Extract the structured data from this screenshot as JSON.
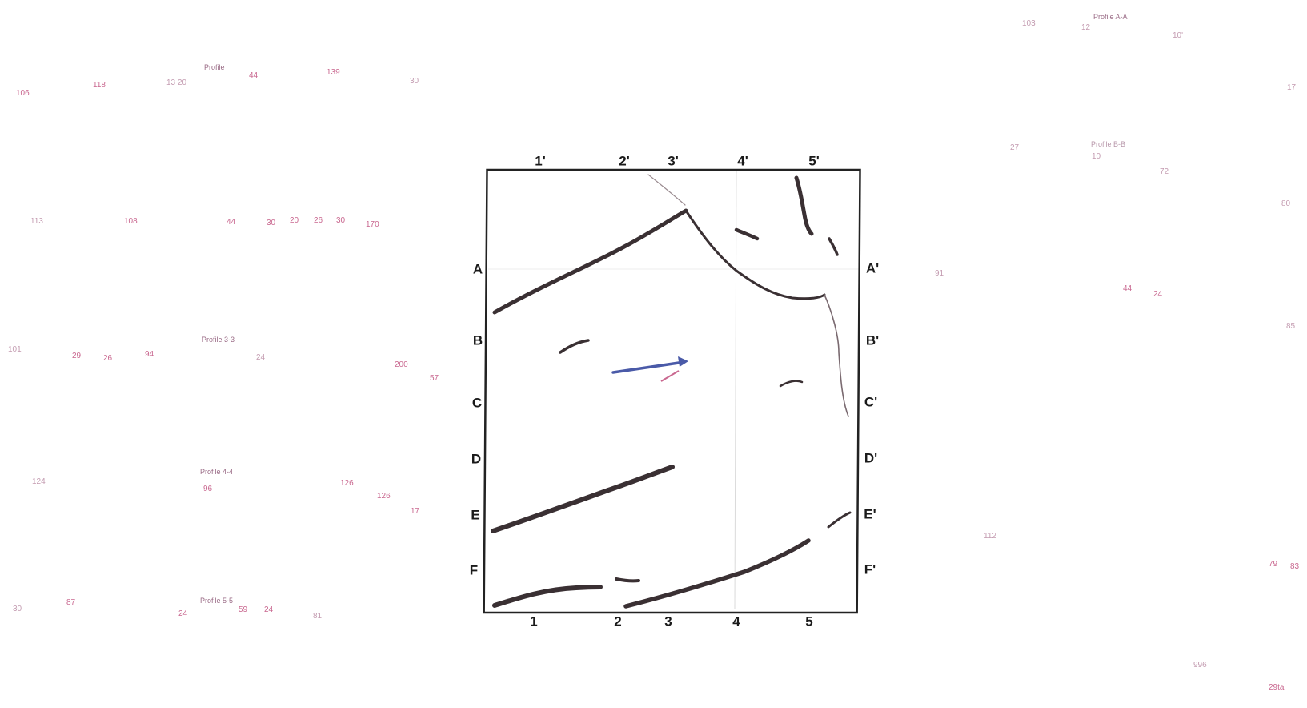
{
  "map": {
    "top_columns": [
      "1'",
      "2'",
      "3'",
      "4'",
      "5'"
    ],
    "bottom_columns": [
      "1",
      "2",
      "3",
      "4",
      "5"
    ],
    "left_rows": [
      "A",
      "B",
      "C",
      "D",
      "E",
      "F"
    ],
    "right_rows": [
      "A'",
      "B'",
      "C'",
      "D'",
      "E'",
      "F'"
    ]
  },
  "left_panel": {
    "profile_labels": [
      "Profile",
      "Profile 3-3",
      "Profile 4-4",
      "Profile 5-5"
    ],
    "numbers_row1": [
      "106",
      "118",
      "13 20",
      "44",
      "139",
      "30"
    ],
    "numbers_row2": [
      "113",
      "108",
      "44",
      "30",
      "20",
      "26",
      "30",
      "170"
    ],
    "numbers_row3": [
      "101",
      "29",
      "26",
      "94",
      "24",
      "200",
      "57"
    ],
    "numbers_row4": [
      "124",
      "96",
      "126",
      "126",
      "17"
    ],
    "numbers_row5": [
      "30",
      "87",
      "24",
      "59",
      "24",
      "81"
    ]
  },
  "right_panel": {
    "profile_labels": [
      "Profile A-A",
      "Profile B-B"
    ],
    "numbers": [
      "103",
      "12",
      "10'",
      "17",
      "27",
      "10",
      "72",
      "80",
      "91",
      "44",
      "24",
      "85",
      "112",
      "79",
      "83",
      "996",
      "29ta"
    ]
  },
  "colors": {
    "frame": "#222222",
    "fault": "#3a3033",
    "arrow": "#4a5aa8",
    "annotation": "#c9678f"
  }
}
